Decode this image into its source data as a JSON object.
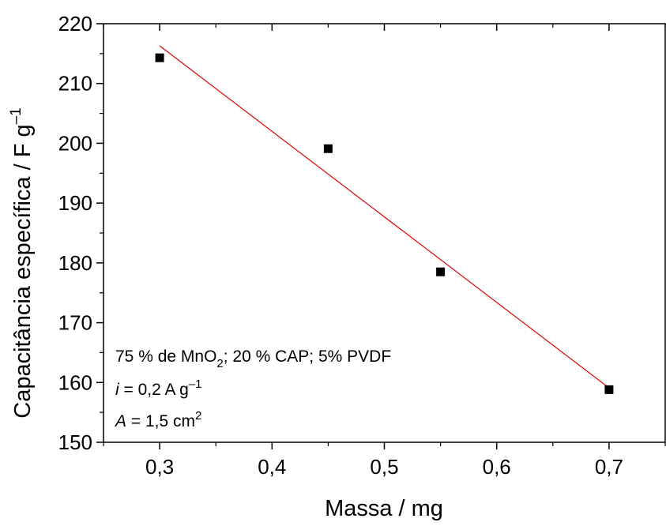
{
  "chart_data": {
    "type": "scatter",
    "xlabel": "Massa / mg",
    "ylabel": {
      "main": "Capacitância específica / F g",
      "sup": "–1"
    },
    "xlim": [
      0.25,
      0.75
    ],
    "ylim": [
      150,
      220
    ],
    "x_ticks": [
      "0,3",
      "0,4",
      "0,5",
      "0,6",
      "0,7"
    ],
    "y_ticks": [
      "150",
      "160",
      "170",
      "180",
      "190",
      "200",
      "210",
      "220"
    ],
    "series": [
      {
        "marker": "square",
        "color": "#000000",
        "x": [
          0.3,
          0.45,
          0.55,
          0.7
        ],
        "y": [
          214.3,
          199.1,
          178.5,
          158.8
        ]
      }
    ],
    "fit_line": {
      "color": "#e00000",
      "x": [
        0.3,
        0.7
      ],
      "y": [
        216.3,
        159.1
      ]
    },
    "annotations": {
      "line1": {
        "a": "75 % de MnO",
        "sub": "2",
        "b": "; 20 % CAP; 5% PVDF"
      },
      "line2": {
        "italic": "i",
        "a": " = 0,2 A g",
        "sup": "–1"
      },
      "line3": {
        "italic": "A",
        "a": " = 1,5 cm",
        "sup": "2"
      }
    },
    "grid": false,
    "legend": "none"
  }
}
